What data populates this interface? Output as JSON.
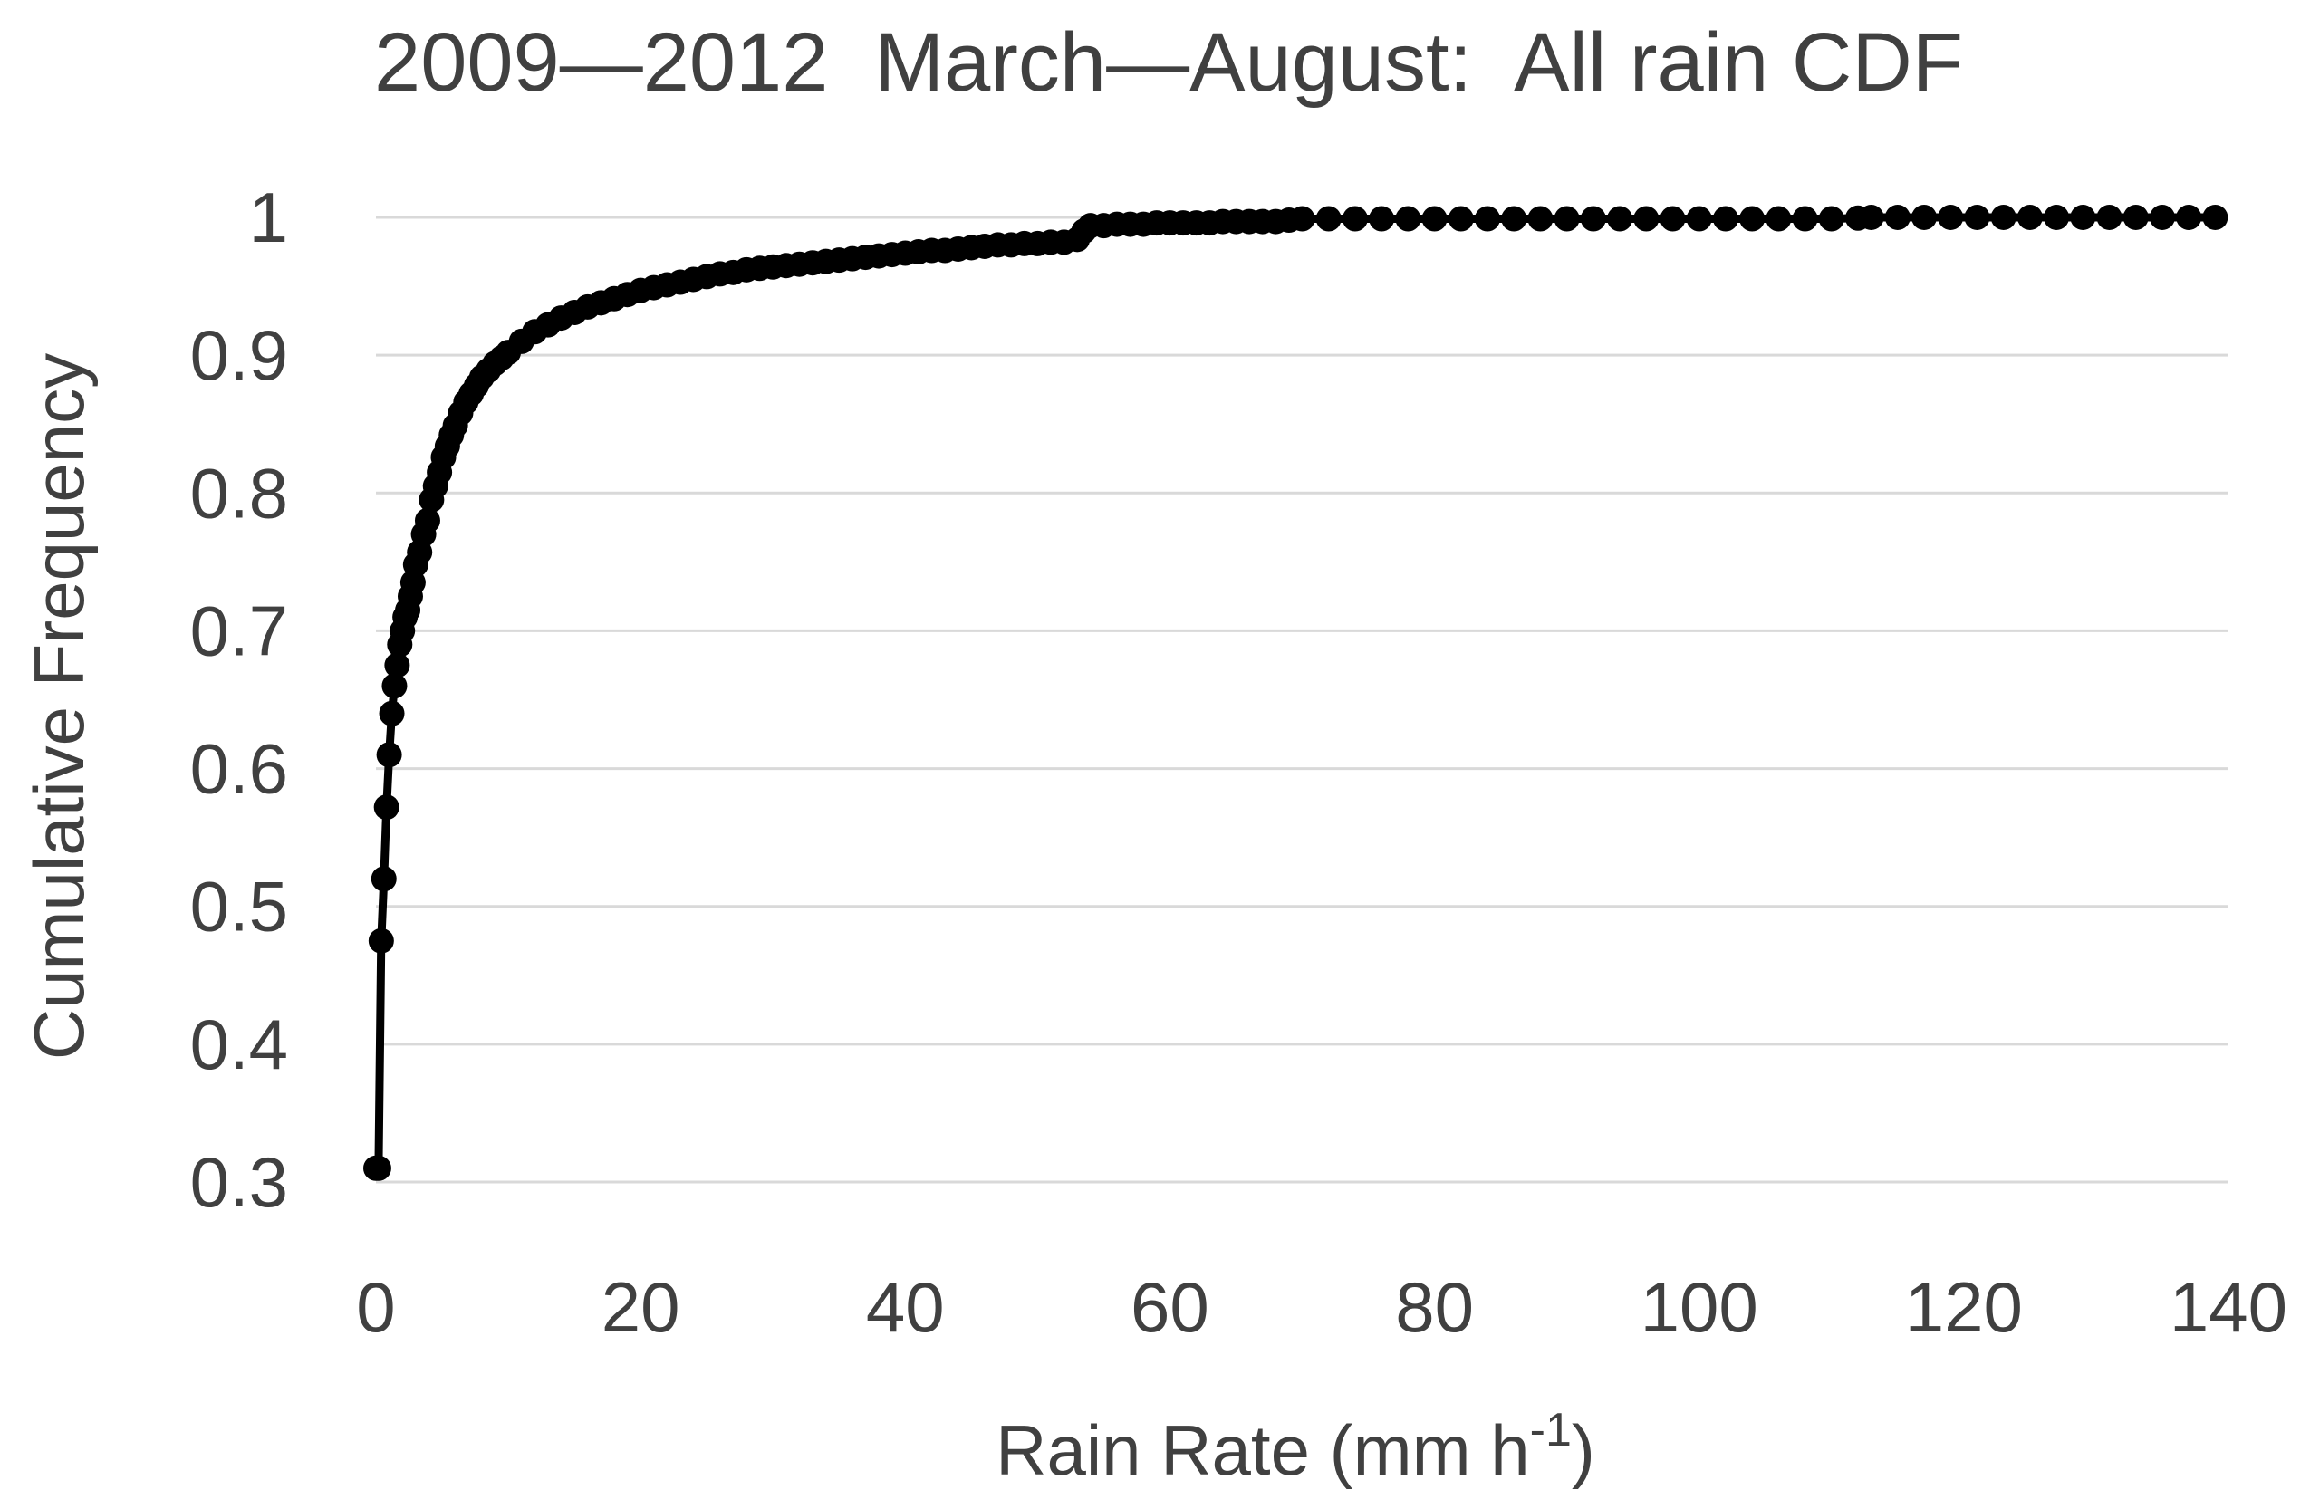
{
  "chart_data": {
    "type": "scatter",
    "title": "2009—2012  March—August:  All rain CDF",
    "xlabel": "Rain Rate (mm h",
    "xlabel_superscript": "-1",
    "xlabel_suffix": ")",
    "ylabel": "Cumulative Frequency",
    "xlim": [
      0,
      140
    ],
    "ylim": [
      0.3,
      1.0
    ],
    "x_ticks": [
      "0",
      "20",
      "40",
      "60",
      "80",
      "100",
      "120",
      "140"
    ],
    "x_tick_values": [
      0,
      20,
      40,
      60,
      80,
      100,
      120,
      140
    ],
    "y_ticks": [
      "0.3",
      "0.4",
      "0.5",
      "0.6",
      "0.7",
      "0.8",
      "0.9",
      "1"
    ],
    "y_tick_values": [
      0.3,
      0.4,
      0.5,
      0.6,
      0.7,
      0.8,
      0.9,
      1.0
    ],
    "grid": true,
    "line_color": "#000000",
    "grid_color": "#d9d9d9",
    "text_color": "#404040",
    "series": [
      {
        "x": [
          0.0,
          0.2,
          0.4,
          0.6,
          0.8,
          1.0,
          1.2,
          1.4,
          1.6,
          1.8,
          2.0,
          2.2,
          2.4,
          2.6,
          2.8,
          3.0,
          3.3,
          3.6,
          3.9,
          4.2,
          4.5,
          4.8,
          5.1,
          5.4,
          5.7,
          6.0,
          6.4,
          6.8,
          7.2,
          7.6,
          8.0,
          8.5,
          9.0,
          9.5,
          10.0,
          11.0,
          12.0,
          13.0,
          14.0,
          15.0,
          16.0,
          17.0,
          18.0,
          19.0,
          20.0,
          21.0,
          22.0,
          23.0,
          24.0,
          25.0,
          26.0,
          27.0,
          28.0,
          29.0,
          30.0,
          31.0,
          32.0,
          33.0,
          34.0,
          35.0,
          36.0,
          37.0,
          38.0,
          39.0,
          40.0,
          41.0,
          42.0,
          43.0,
          44.0,
          45.0,
          46.0,
          47.0,
          48.0,
          49.0,
          50.0,
          51.0,
          52.0,
          53.0,
          53.5,
          54.0,
          55.0,
          56.0,
          57.0,
          58.0,
          59.0,
          60.0,
          61.0,
          62.0,
          63.0,
          64.0,
          65.0,
          66.0,
          67.0,
          68.0,
          69.0,
          70.0,
          72.0,
          74.0,
          76.0,
          78.0,
          80.0,
          82.0,
          84.0,
          86.0,
          88.0,
          90.0,
          92.0,
          94.0,
          96.0,
          98.0,
          100.0,
          102.0,
          104.0,
          106.0,
          108.0,
          110.0,
          112.0,
          113.0,
          115.0,
          117.0,
          119.0,
          121.0,
          123.0,
          125.0,
          127.0,
          129.0,
          131.0,
          133.0,
          135.0,
          137.0,
          139.0
        ],
        "y": [
          0.31,
          0.31,
          0.475,
          0.52,
          0.572,
          0.61,
          0.64,
          0.66,
          0.675,
          0.69,
          0.7,
          0.71,
          0.715,
          0.725,
          0.735,
          0.748,
          0.757,
          0.77,
          0.78,
          0.795,
          0.805,
          0.815,
          0.826,
          0.834,
          0.842,
          0.849,
          0.858,
          0.866,
          0.872,
          0.878,
          0.884,
          0.889,
          0.894,
          0.898,
          0.902,
          0.91,
          0.917,
          0.922,
          0.927,
          0.931,
          0.935,
          0.938,
          0.941,
          0.944,
          0.947,
          0.949,
          0.951,
          0.953,
          0.955,
          0.957,
          0.959,
          0.96,
          0.962,
          0.963,
          0.964,
          0.965,
          0.966,
          0.967,
          0.968,
          0.969,
          0.97,
          0.971,
          0.972,
          0.973,
          0.974,
          0.975,
          0.976,
          0.976,
          0.977,
          0.978,
          0.979,
          0.98,
          0.98,
          0.981,
          0.981,
          0.982,
          0.982,
          0.984,
          0.99,
          0.994,
          0.994,
          0.995,
          0.995,
          0.995,
          0.996,
          0.996,
          0.996,
          0.996,
          0.996,
          0.997,
          0.997,
          0.997,
          0.997,
          0.997,
          0.998,
          0.999,
          0.999,
          0.999,
          0.999,
          0.999,
          0.999,
          0.999,
          0.999,
          0.999,
          0.999,
          0.999,
          0.999,
          0.999,
          0.999,
          0.999,
          0.999,
          0.999,
          0.999,
          0.999,
          0.999,
          0.999,
          0.9995,
          1.0,
          1.0,
          1.0,
          1.0,
          1.0,
          1.0,
          1.0,
          1.0,
          1.0,
          1.0,
          1.0,
          1.0,
          1.0,
          1.0
        ]
      }
    ]
  }
}
